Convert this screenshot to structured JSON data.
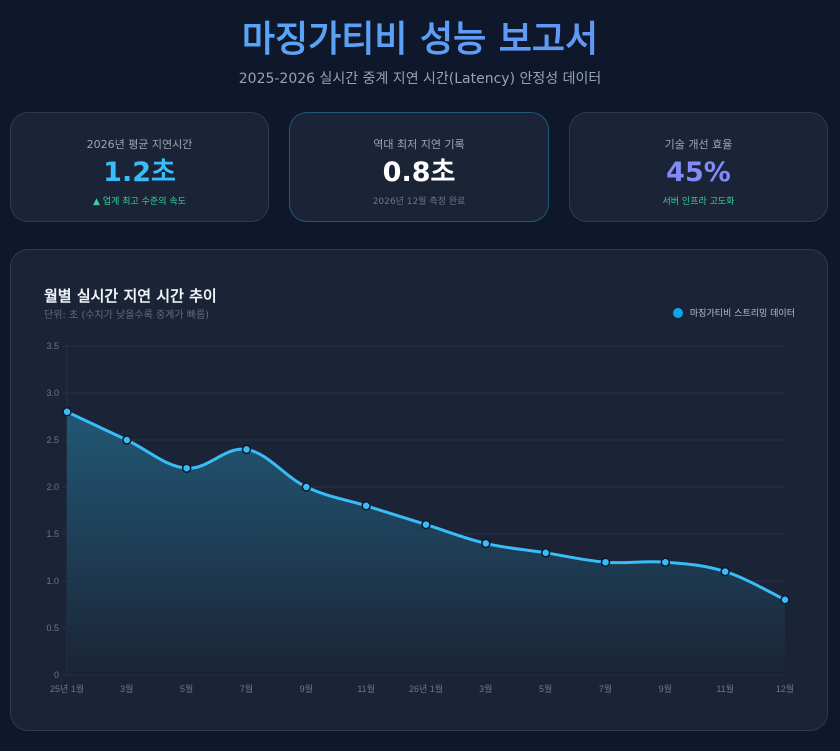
{
  "header": {
    "title": "마징가티비 성능 보고서",
    "subtitle": "2025-2026 실시간 중계 지연 시간(Latency) 안정성 데이터"
  },
  "cards": [
    {
      "label": "2026년 평균 지연시간",
      "value": "1.2초",
      "note": "▲ 업계 최고 수준의 속도",
      "value_color": "#38bdf8",
      "note_color": "#34d399"
    },
    {
      "label": "역대 최저 지연 기록",
      "value": "0.8초",
      "note": "2026년 12월 측정 완료",
      "value_color": "#ffffff",
      "note_color": "#6b7686"
    },
    {
      "label": "기술 개선 효율",
      "value": "45%",
      "note": "서버 인프라 고도화",
      "value_color": "#818cf8",
      "note_color": "#34d399"
    }
  ],
  "chart": {
    "title": "월별 실시간 지연 시간 추이",
    "subtitle": "단위: 초 (수치가 낮을수록 중계가 빠름)",
    "legend_label": "마징가티비 스트리밍 데이터"
  },
  "colors": {
    "line": "#38bdf8",
    "legend": "#0ea5e9",
    "background": "#0f172a",
    "card": "#1b2436"
  },
  "chart_data": {
    "type": "line",
    "title": "월별 실시간 지연 시간 추이",
    "subtitle": "단위: 초 (수치가 낮을수록 중계가 빠름)",
    "xlabel": "",
    "ylabel": "초",
    "categories": [
      "25년 1월",
      "3월",
      "5월",
      "7월",
      "9월",
      "11월",
      "26년 1월",
      "3월",
      "5월",
      "7월",
      "9월",
      "11월",
      "12월"
    ],
    "series": [
      {
        "name": "마징가티비 스트리밍 데이터",
        "values": [
          2.8,
          2.5,
          2.2,
          2.4,
          2.0,
          1.8,
          1.6,
          1.4,
          1.3,
          1.2,
          1.2,
          1.1,
          0.8
        ]
      }
    ],
    "yticks": [
      "0",
      "0.5",
      "1.0",
      "1.5",
      "2.0",
      "2.5",
      "3.0",
      "3.5"
    ],
    "ylim": [
      0,
      3.5
    ],
    "grid": true,
    "area_fill": true,
    "smooth": true,
    "legend_position": "top-right"
  }
}
